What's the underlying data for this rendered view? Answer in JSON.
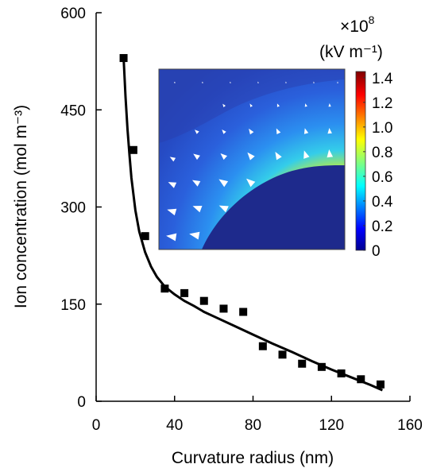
{
  "chart_data": [
    {
      "type": "scatter",
      "title": "",
      "xlabel": "Curvature radius (nm)",
      "ylabel": "Ion concentration (mol m⁻³)",
      "xlim": [
        0,
        160
      ],
      "ylim": [
        0,
        600
      ],
      "x_ticks": [
        "0",
        "40",
        "80",
        "120",
        "160"
      ],
      "y_ticks": [
        "0",
        "150",
        "300",
        "450",
        "600"
      ],
      "x_tick_values": [
        0,
        40,
        80,
        120,
        160
      ],
      "y_tick_values": [
        0,
        150,
        300,
        450,
        600
      ],
      "grid": false,
      "series": [
        {
          "marker": "square",
          "color": "#000000",
          "x": [
            14,
            19,
            25,
            35,
            45,
            55,
            65,
            75,
            85,
            95,
            105,
            115,
            125,
            135,
            145
          ],
          "y": [
            530,
            388,
            255,
            174,
            167,
            155,
            143,
            138,
            85,
            72,
            58,
            53,
            43,
            34,
            26
          ]
        },
        {
          "type": "line",
          "color": "#000000",
          "x": [
            14,
            15,
            16,
            17,
            18,
            20,
            22,
            25,
            28,
            31,
            35,
            40,
            45,
            50,
            55,
            60,
            70,
            80,
            90,
            100,
            110,
            120,
            130,
            140,
            146
          ],
          "y": [
            530,
            470,
            420,
            380,
            345,
            295,
            262,
            230,
            208,
            192,
            177,
            165,
            155,
            147,
            138,
            131,
            117,
            103,
            89,
            76,
            62,
            49,
            37,
            25,
            17
          ]
        }
      ]
    },
    {
      "type": "heatmap",
      "colorbar": {
        "multiplier": "×10",
        "multiplier_exp": "8",
        "unit": "(kV m⁻¹)",
        "ticks": [
          "1.4",
          "1.2",
          "1.0",
          "0.8",
          "0.6",
          "0.4",
          "0.2",
          "0"
        ],
        "tick_values": [
          1.4,
          1.2,
          1.0,
          0.8,
          0.6,
          0.4,
          0.2,
          0
        ],
        "range": [
          0,
          1.45
        ],
        "colormap": "jet"
      },
      "colors": {
        "dark_blue": "#1e2a8c",
        "field_blue": "#2e66e0",
        "cyan": "#2fc6ee",
        "yellow": "#f2e600",
        "dark_red": "#7f0000"
      }
    }
  ]
}
